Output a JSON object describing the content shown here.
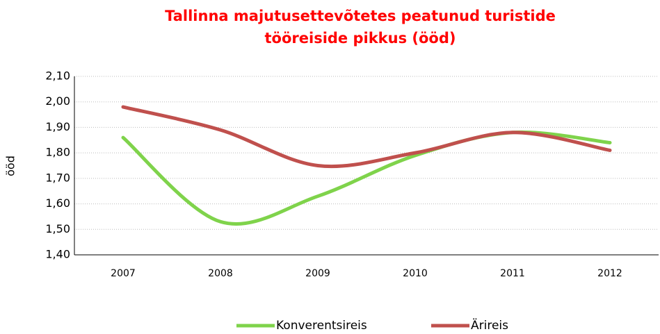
{
  "chart_data": {
    "type": "line",
    "title": [
      "Tallinna majutusettevõtetes peatunud turistide",
      "tööreiside pikkus (ööd)"
    ],
    "y_label": "ööd",
    "categories": [
      "2007",
      "2008",
      "2009",
      "2010",
      "2011",
      "2012"
    ],
    "series": [
      {
        "name": "Konverentsireis",
        "color": "#7fd34b",
        "values": [
          1.86,
          1.53,
          1.63,
          1.79,
          1.88,
          1.84
        ]
      },
      {
        "name": "Ärireis",
        "color": "#c0504d",
        "values": [
          1.98,
          1.89,
          1.75,
          1.8,
          1.88,
          1.81
        ]
      }
    ],
    "ylim": [
      1.4,
      2.1
    ],
    "yticks": [
      {
        "value": 1.4,
        "label": "1,40"
      },
      {
        "value": 1.5,
        "label": "1,50"
      },
      {
        "value": 1.6,
        "label": "1,60"
      },
      {
        "value": 1.7,
        "label": "1,70"
      },
      {
        "value": 1.8,
        "label": "1,80"
      },
      {
        "value": 1.9,
        "label": "1,90"
      },
      {
        "value": 2.0,
        "label": "2,00"
      },
      {
        "value": 2.1,
        "label": "2,10"
      }
    ],
    "grid": true,
    "legend": "bottom"
  }
}
